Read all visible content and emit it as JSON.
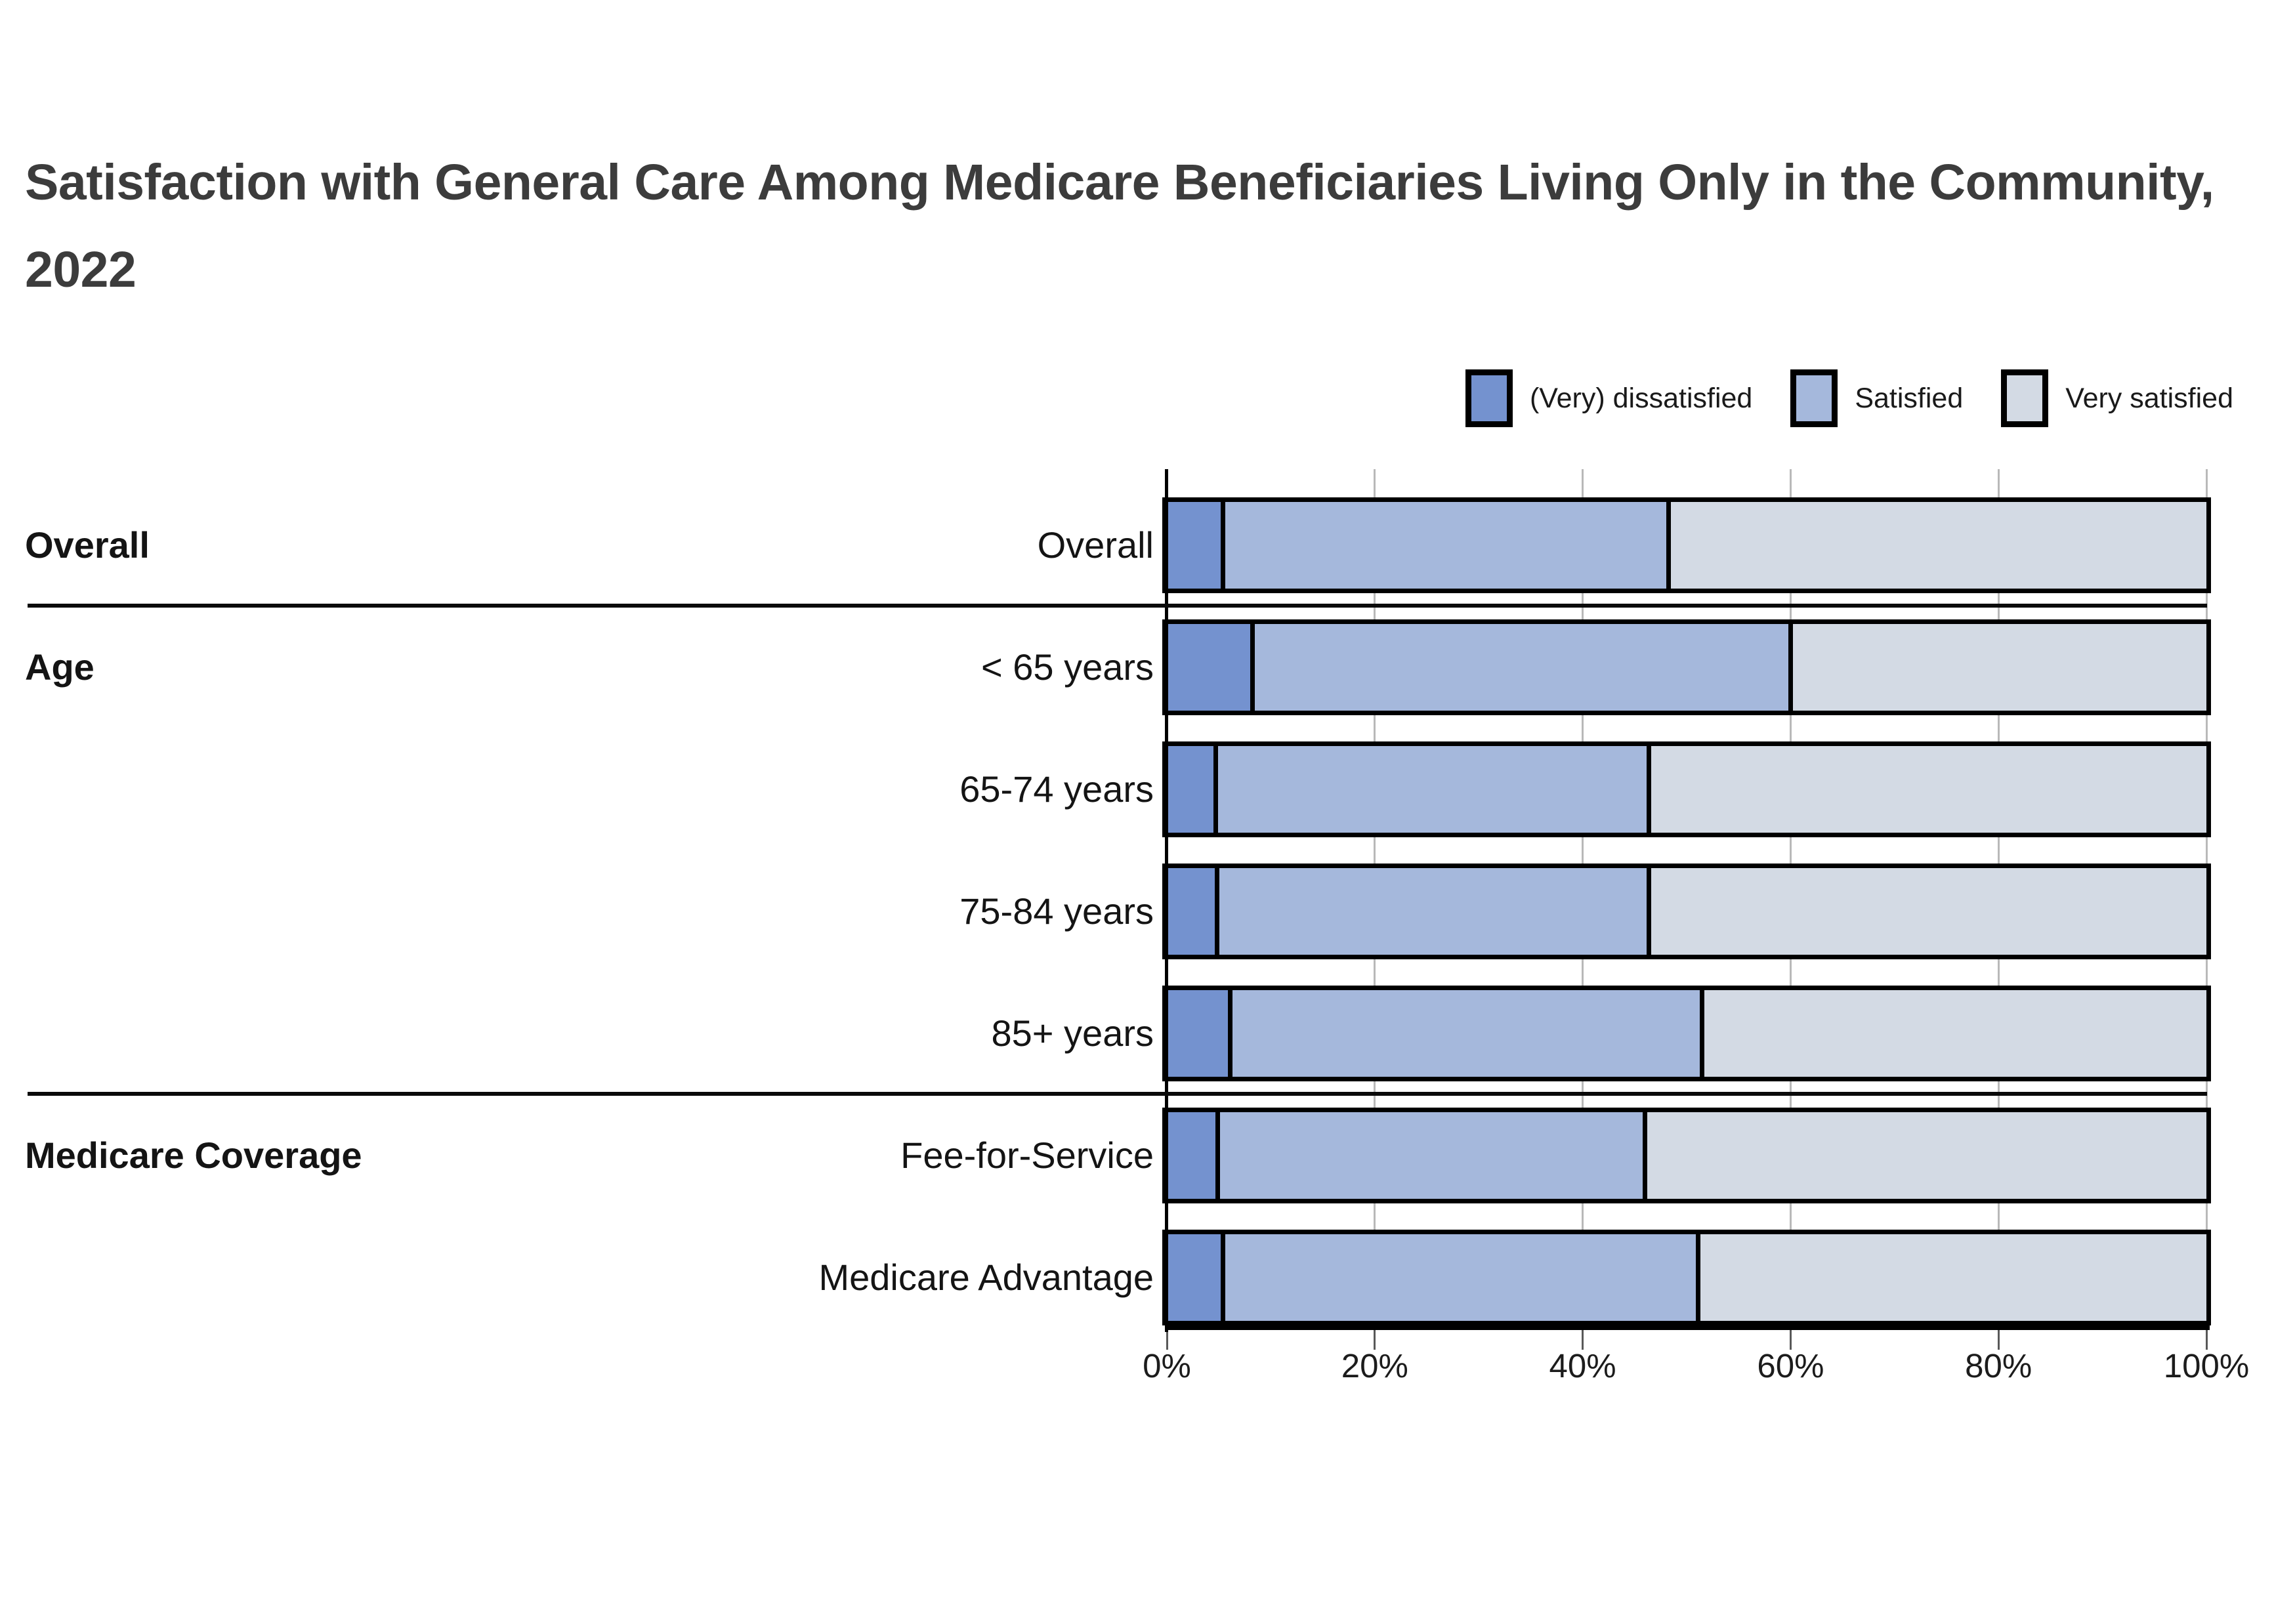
{
  "title": "Satisfaction with General Care Among Medicare Beneficiaries Living Only in the Community, 2022",
  "colors": {
    "dissatisfied": "#7492CF",
    "satisfied": "#A5B8DC",
    "very_satisfied": "#D3DAE4",
    "bar_border": "#000000",
    "gridline": "#b9b9b9",
    "title_text": "#3c3c3c"
  },
  "legend": {
    "position": "top-right",
    "items": [
      {
        "label": "(Very) dissatisfied",
        "color": "#7492CF"
      },
      {
        "label": "Satisfied",
        "color": "#A5B8DC"
      },
      {
        "label": "Very satisfied",
        "color": "#D3DAE4"
      }
    ]
  },
  "axis": {
    "tick_labels": [
      "0%",
      "20%",
      "40%",
      "60%",
      "80%",
      "100%"
    ],
    "min": 0,
    "max": 100
  },
  "sections": [
    {
      "label": "Overall",
      "start_row": 0
    },
    {
      "label": "Age",
      "start_row": 1
    },
    {
      "label": "Medicare Coverage",
      "start_row": 5
    }
  ],
  "chart_data": {
    "type": "bar",
    "orientation": "horizontal",
    "stacked": true,
    "title": "Satisfaction with General Care Among Medicare Beneficiaries Living Only in the Community, 2022",
    "categories": [
      "Overall",
      "< 65 years",
      "65-74 years",
      "75-84 years",
      "85+ years",
      "Fee-for-Service",
      "Medicare Advantage"
    ],
    "category_groups": {
      "Overall": [
        "Overall"
      ],
      "Age": [
        "< 65 years",
        "65-74 years",
        "75-84 years",
        "85+ years"
      ],
      "Medicare Coverage": [
        "Fee-for-Service",
        "Medicare Advantage"
      ]
    },
    "series": [
      {
        "name": "(Very) dissatisfied",
        "color": "#7492CF",
        "values": [
          5.2,
          8.0,
          4.5,
          4.6,
          5.9,
          4.7,
          5.2
        ]
      },
      {
        "name": "Satisfied",
        "color": "#A5B8DC",
        "values": [
          43.3,
          52.2,
          42.1,
          42.0,
          45.8,
          41.5,
          46.1
        ]
      },
      {
        "name": "Very satisfied",
        "color": "#D3DAE4",
        "values": [
          51.5,
          39.8,
          53.4,
          53.4,
          48.3,
          53.8,
          48.7
        ]
      }
    ],
    "xlabel": "",
    "ylabel": "",
    "xlim": [
      0,
      100
    ],
    "x_tick_labels": [
      "0%",
      "20%",
      "40%",
      "60%",
      "80%",
      "100%"
    ],
    "units": "percent",
    "grid": true,
    "legend_position": "top-right"
  }
}
